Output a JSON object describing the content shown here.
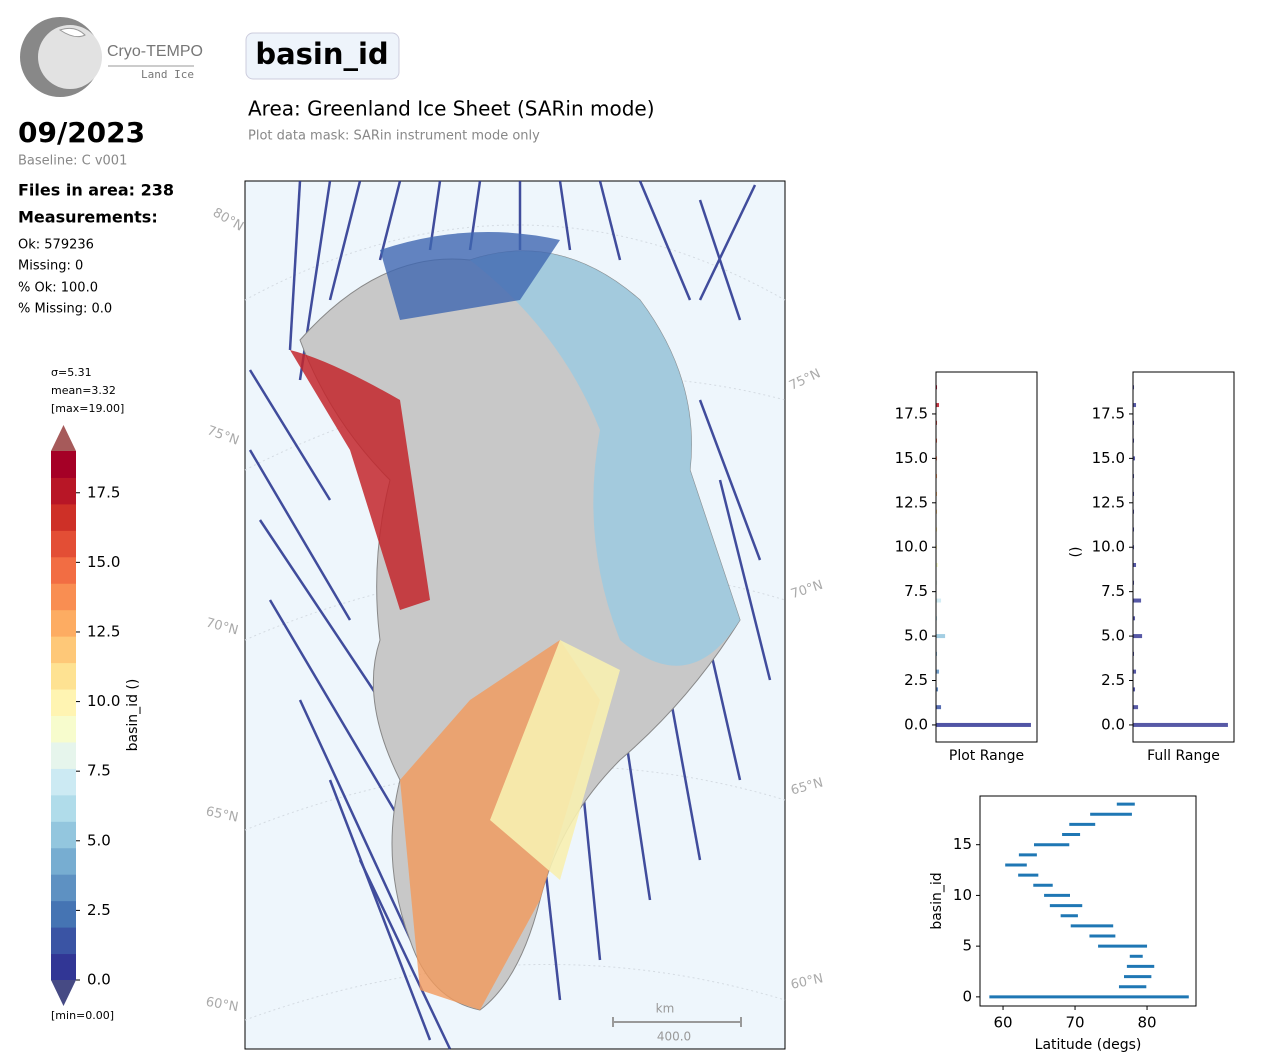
{
  "logo": {
    "name": "Cryo-TEMPO",
    "sub": "Land Ice"
  },
  "header": {
    "title": "basin_id",
    "area": "Area: Greenland Ice Sheet (SARin mode)",
    "mask": "Plot data mask: SARin instrument mode only"
  },
  "info": {
    "date": "09/2023",
    "baseline": "Baseline: C v001",
    "files": "Files in area: 238",
    "measurements": "Measurements:",
    "ok": "Ok: 579236",
    "missing": "Missing: 0",
    "pct_ok": "% Ok: 100.0",
    "pct_missing": "% Missing: 0.0"
  },
  "map": {
    "lat_labels": [
      "80°N",
      "75°N",
      "70°N",
      "65°N",
      "60°N",
      "75°N",
      "70°N",
      "65°N",
      "60°N"
    ],
    "scale_unit": "km",
    "scale_length": "400.0"
  },
  "chart_data": [
    {
      "type": "colorbar",
      "stats": [
        "σ=5.31",
        "mean=3.32",
        "[max=19.00]"
      ],
      "min_label": "[min=0.00]",
      "ylabel": "basin_id ()",
      "ylim": [
        0,
        19
      ],
      "yticks": [
        {
          "value": 0,
          "label": "0.0"
        },
        2.5,
        {
          "value": 5,
          "label": "5.0"
        },
        7.5,
        {
          "value": 10,
          "label": "10.0"
        },
        12.5,
        {
          "value": 15,
          "label": "15.0"
        },
        17.5
      ],
      "colors": [
        "#313695",
        "#3a54a4",
        "#4574b3",
        "#5e91c2",
        "#77add1",
        "#93c6de",
        "#b0dcea",
        "#cceaf3",
        "#e6f5ec",
        "#f7fccd",
        "#fff4b2",
        "#fee292",
        "#fec878",
        "#fdac62",
        "#f98e52",
        "#f26d43",
        "#e34e35",
        "#ce3027",
        "#b81626",
        "#a50026"
      ]
    },
    {
      "type": "hbar",
      "xlabel": "Plot Range",
      "color_by_value": true,
      "y": [
        0,
        1,
        2,
        3,
        4,
        5,
        6,
        7,
        8,
        9,
        10,
        11,
        12,
        13,
        14,
        15,
        16,
        17,
        18,
        19
      ],
      "values": [
        0.94,
        0.05,
        0.02,
        0.03,
        0.01,
        0.09,
        0.01,
        0.05,
        0.01,
        0.02,
        0.01,
        0.01,
        0.01,
        0.01,
        0.01,
        0.01,
        0.01,
        0.01,
        0.03,
        0.01
      ],
      "xlim": [
        0,
        1
      ],
      "ylim": [
        -0.96,
        19.86
      ],
      "yticks": [
        {
          "value": 0,
          "label": "0.0"
        },
        2.5,
        {
          "value": 5,
          "label": "5.0"
        },
        7.5,
        {
          "value": 10,
          "label": "10.0"
        },
        12.5,
        {
          "value": 15,
          "label": "15.0"
        },
        17.5
      ]
    },
    {
      "type": "hbar",
      "xlabel": "Full Range",
      "ylabel": "()",
      "color": "#3a3c96",
      "y": [
        0,
        1,
        2,
        3,
        4,
        5,
        6,
        7,
        8,
        9,
        10,
        11,
        12,
        13,
        14,
        15,
        16,
        17,
        18,
        19
      ],
      "values": [
        0.94,
        0.05,
        0.02,
        0.03,
        0.01,
        0.09,
        0.02,
        0.08,
        0.01,
        0.03,
        0.01,
        0.01,
        0.01,
        0.01,
        0.01,
        0.02,
        0.01,
        0.01,
        0.03,
        0.01
      ],
      "xlim": [
        0,
        1
      ],
      "ylim": [
        -0.96,
        19.86
      ],
      "yticks": [
        {
          "value": 0,
          "label": "0.0"
        },
        2.5,
        {
          "value": 5,
          "label": "5.0"
        },
        7.5,
        {
          "value": 10,
          "label": "10.0"
        },
        12.5,
        {
          "value": 15,
          "label": "15.0"
        },
        17.5
      ]
    },
    {
      "type": "range",
      "xlabel": "Latitude (degs)",
      "ylabel": "basin_id",
      "color": "#1f77b4",
      "y": [
        0,
        1,
        2,
        3,
        4,
        5,
        6,
        7,
        8,
        9,
        10,
        11,
        12,
        13,
        14,
        15,
        16,
        17,
        18,
        19
      ],
      "x_min": [
        58.1,
        76.1,
        76.8,
        77.2,
        77.6,
        73.2,
        72.0,
        69.4,
        68.0,
        66.5,
        65.7,
        64.2,
        62.1,
        60.3,
        62.2,
        64.3,
        68.2,
        69.2,
        72.1,
        75.8
      ],
      "x_max": [
        85.8,
        79.9,
        80.6,
        81.0,
        79.4,
        80.0,
        75.6,
        75.3,
        70.4,
        71.0,
        69.3,
        66.9,
        64.9,
        63.3,
        64.7,
        69.2,
        70.7,
        72.8,
        77.9,
        78.3
      ],
      "xlim": [
        56.8,
        86.8
      ],
      "ylim": [
        -0.9,
        19.8
      ],
      "xticks": [
        60,
        70,
        80
      ],
      "yticks": [
        0,
        5,
        10,
        15
      ]
    }
  ]
}
